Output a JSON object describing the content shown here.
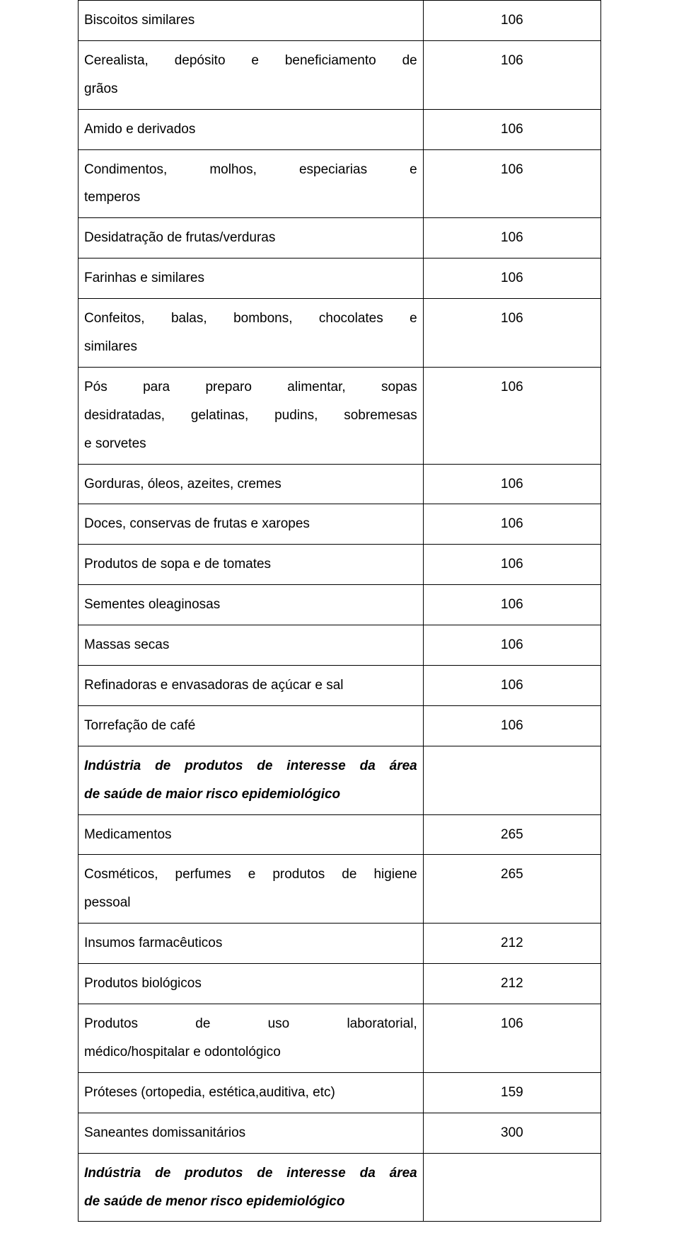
{
  "table": {
    "rows": [
      {
        "left": "Biscoitos similares",
        "right": "106",
        "style": "normal",
        "multiline": false
      },
      {
        "left": "Cerealista, depósito e beneficiamento de grãos",
        "right": "106",
        "style": "normal",
        "multiline": true,
        "lines": [
          "Cerealista, depósito e beneficiamento de",
          "grãos"
        ]
      },
      {
        "left": "Amido e derivados",
        "right": "106",
        "style": "normal",
        "multiline": false
      },
      {
        "left": "Condimentos, molhos, especiarias e temperos",
        "right": "106",
        "style": "normal",
        "multiline": true,
        "lines": [
          "Condimentos, molhos, especiarias e",
          "temperos"
        ]
      },
      {
        "left": "Desidatração de frutas/verduras",
        "right": "106",
        "style": "normal",
        "multiline": false
      },
      {
        "left": "Farinhas e similares",
        "right": "106",
        "style": "normal",
        "multiline": false
      },
      {
        "left": "Confeitos, balas, bombons, chocolates e similares",
        "right": "106",
        "style": "normal",
        "multiline": true,
        "lines": [
          "Confeitos, balas, bombons, chocolates e",
          "similares"
        ]
      },
      {
        "left": "Pós para preparo alimentar, sopas desidratadas, gelatinas, pudins, sobremesas e sorvetes",
        "right": "106",
        "style": "normal",
        "multiline": true,
        "lines": [
          "Pós para preparo alimentar, sopas",
          "desidratadas, gelatinas, pudins, sobremesas",
          "e sorvetes"
        ]
      },
      {
        "left": "Gorduras, óleos, azeites, cremes",
        "right": "106",
        "style": "normal",
        "multiline": false
      },
      {
        "left": "Doces, conservas de frutas e xaropes",
        "right": "106",
        "style": "normal",
        "multiline": false
      },
      {
        "left": "Produtos de sopa e de tomates",
        "right": "106",
        "style": "normal",
        "multiline": false
      },
      {
        "left": "Sementes oleaginosas",
        "right": "106",
        "style": "normal",
        "multiline": false
      },
      {
        "left": "Massas secas",
        "right": "106",
        "style": "normal",
        "multiline": false
      },
      {
        "left": "Refinadoras e envasadoras de açúcar e sal",
        "right": "106",
        "style": "normal",
        "multiline": false
      },
      {
        "left": "Torrefação de café",
        "right": "106",
        "style": "normal",
        "multiline": false
      },
      {
        "left": "Indústria de produtos de interesse da área de saúde de maior risco epidemiológico",
        "right": "",
        "style": "bold-italic",
        "multiline": true,
        "lines": [
          "Indústria de produtos de interesse da área",
          "de saúde de maior risco epidemiológico"
        ]
      },
      {
        "left": "Medicamentos",
        "right": "265",
        "style": "normal",
        "multiline": false
      },
      {
        "left": "Cosméticos, perfumes e produtos de higiene pessoal",
        "right": "265",
        "style": "normal",
        "multiline": true,
        "lines": [
          "Cosméticos, perfumes e produtos de higiene",
          "pessoal"
        ]
      },
      {
        "left": "Insumos farmacêuticos",
        "right": "212",
        "style": "normal",
        "multiline": false
      },
      {
        "left": "Produtos biológicos",
        "right": "212",
        "style": "normal",
        "multiline": false
      },
      {
        "left": "Produtos de uso laboratorial, médico/hospitalar e odontológico",
        "right": "106",
        "style": "normal",
        "multiline": true,
        "lines": [
          "Produtos de uso laboratorial,",
          "médico/hospitalar e odontológico"
        ]
      },
      {
        "left": "Próteses  (ortopedia, estética,auditiva, etc)",
        "right": "159",
        "style": "normal",
        "multiline": false
      },
      {
        "left": "Saneantes domissanitários",
        "right": "300",
        "style": "normal",
        "multiline": false
      },
      {
        "left": "Indústria de produtos de interesse da área de saúde de menor risco epidemiológico",
        "right": "",
        "style": "bold-italic",
        "multiline": true,
        "lines": [
          "Indústria de produtos de interesse da área",
          "de saúde de menor risco epidemiológico"
        ]
      }
    ],
    "colors": {
      "border": "#000000",
      "text": "#000000",
      "background": "#ffffff"
    },
    "font": {
      "family": "Arial",
      "size_pt": 14
    }
  }
}
